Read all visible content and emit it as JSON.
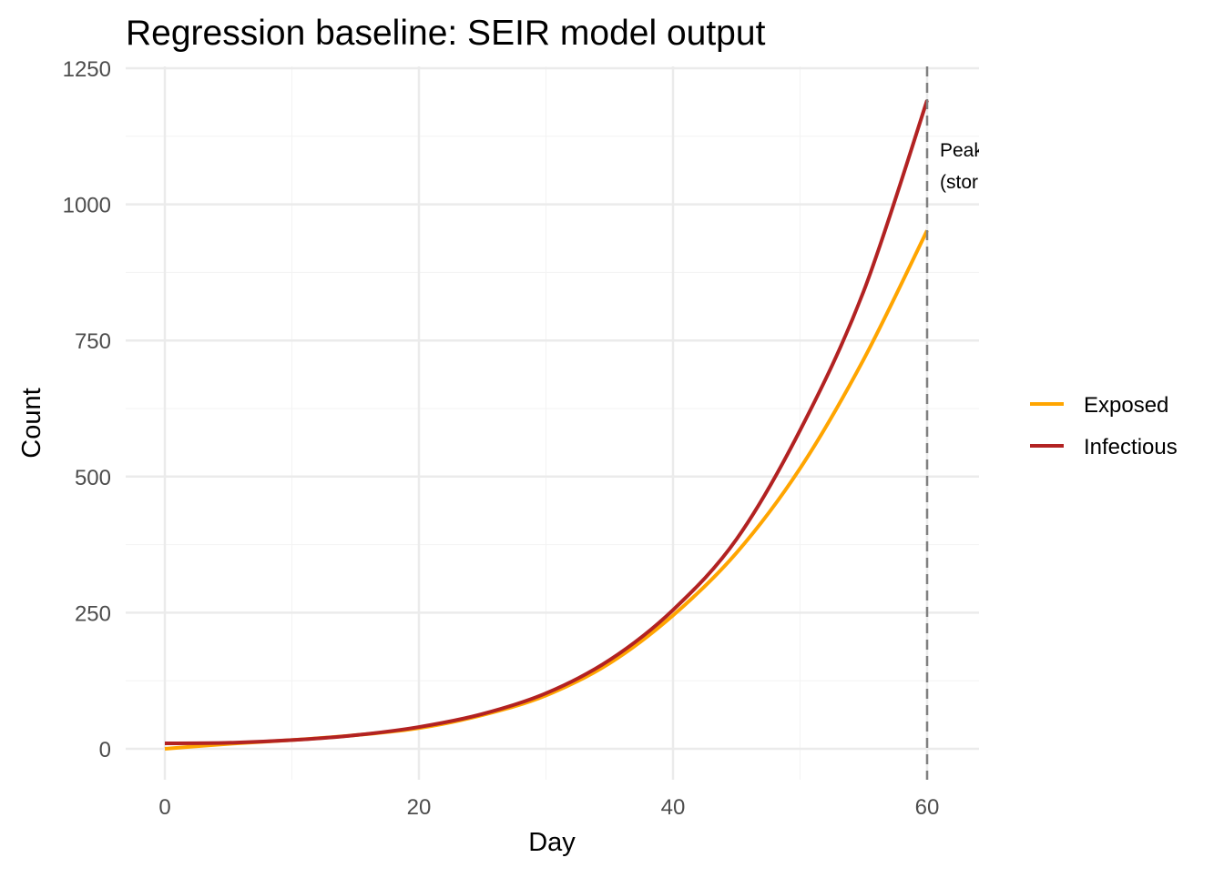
{
  "chart_data": {
    "type": "line",
    "title": "Regression baseline: SEIR model output",
    "xlabel": "Day",
    "ylabel": "Count",
    "xlim": [
      -3,
      64
    ],
    "ylim": [
      -55,
      1255
    ],
    "x_ticks": [
      0,
      20,
      40,
      60
    ],
    "y_ticks": [
      0,
      250,
      500,
      750,
      1000,
      1250
    ],
    "grid": true,
    "legend_position": "right",
    "x": [
      0,
      5,
      10,
      15,
      20,
      25,
      30,
      35,
      40,
      45,
      50,
      55,
      60
    ],
    "series": [
      {
        "name": "Exposed",
        "color": "#FFA500",
        "values": [
          0,
          9,
          16,
          25,
          38,
          62,
          98,
          157,
          245,
          360,
          515,
          715,
          952
        ]
      },
      {
        "name": "Infectious",
        "color": "#B22222",
        "values": [
          10,
          11,
          16,
          25,
          40,
          64,
          102,
          163,
          255,
          385,
          585,
          840,
          1191
        ]
      }
    ],
    "vline": {
      "x": 60,
      "color": "#808080",
      "style": "dashed"
    },
    "annotation": {
      "lines": [
        "Peak",
        "(storm"
      ],
      "x": 60,
      "y": 1100
    }
  }
}
